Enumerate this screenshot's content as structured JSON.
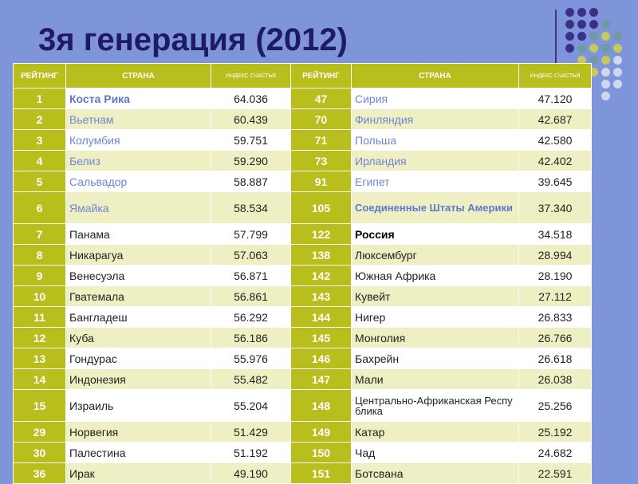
{
  "title": "3я генерация (2012)",
  "decor": {
    "dot_colors": {
      "purple": "#3c2f87",
      "teal": "#6f9aa8",
      "yellow": "#c6c95b",
      "light": "#cfd6ee"
    }
  },
  "table": {
    "headers": {
      "rank": "РЕЙТИНГ",
      "country": "СТРАНА",
      "index": "ИНДЕКС СЧАСТЬЯ"
    },
    "rows": [
      {
        "r1": "1",
        "c1": "Коста Рика",
        "v1": "64.036",
        "r2": "47",
        "c2": "Сирия",
        "v2": "47.120"
      },
      {
        "r1": "2",
        "c1": "Вьетнам",
        "v1": "60.439",
        "r2": "70",
        "c2": "Финляндия",
        "v2": "42.687"
      },
      {
        "r1": "3",
        "c1": "Колумбия",
        "v1": "59.751",
        "r2": "71",
        "c2": "Польша",
        "v2": "42.580"
      },
      {
        "r1": "4",
        "c1": "Белиз",
        "v1": "59.290",
        "r2": "73",
        "c2": "Ирландия",
        "v2": "42.402"
      },
      {
        "r1": "5",
        "c1": "Сальвадор",
        "v1": "58.887",
        "r2": "91",
        "c2": "Египет",
        "v2": "39.645"
      },
      {
        "r1": "6",
        "c1": "Ямайка",
        "v1": "58.534",
        "r2": "105",
        "c2": "Соединенные Штаты Америки",
        "v2": "37.340"
      },
      {
        "r1": "7",
        "c1": "Панама",
        "v1": "57.799",
        "r2": "122",
        "c2": "Россия",
        "v2": "34.518"
      },
      {
        "r1": "8",
        "c1": "Никарагуа",
        "v1": "57.063",
        "r2": "138",
        "c2": "Люксембург",
        "v2": "28.994"
      },
      {
        "r1": "9",
        "c1": "Венесуэла",
        "v1": "56.871",
        "r2": "142",
        "c2": "Южная Африка",
        "v2": "28.190"
      },
      {
        "r1": "10",
        "c1": "Гватемала",
        "v1": "56.861",
        "r2": "143",
        "c2": "Кувейт",
        "v2": "27.112"
      },
      {
        "r1": "11",
        "c1": "Бангладеш",
        "v1": "56.292",
        "r2": "144",
        "c2": "Нигер",
        "v2": "26.833"
      },
      {
        "r1": "12",
        "c1": "Куба",
        "v1": "56.186",
        "r2": "145",
        "c2": "Монголия",
        "v2": "26.766"
      },
      {
        "r1": "13",
        "c1": "Гондурас",
        "v1": "55.976",
        "r2": "146",
        "c2": "Бахрейн",
        "v2": "26.618"
      },
      {
        "r1": "14",
        "c1": "Индонезия",
        "v1": "55.482",
        "r2": "147",
        "c2": "Мали",
        "v2": "26.038"
      },
      {
        "r1": "15",
        "c1": "Израиль",
        "v1": "55.204",
        "r2": "148",
        "c2": "Центрально-Африканская Республика",
        "v2": "25.256"
      },
      {
        "r1": "29",
        "c1": "Норвегия",
        "v1": "51.429",
        "r2": "149",
        "c2": "Катар",
        "v2": "25.192"
      },
      {
        "r1": "30",
        "c1": "Палестина",
        "v1": "51.192",
        "r2": "150",
        "c2": "Чад",
        "v2": "24.682"
      },
      {
        "r1": "36",
        "c1": "Ирак",
        "v1": "49.190",
        "r2": "151",
        "c2": "Ботсвана",
        "v2": "22.591"
      }
    ]
  }
}
